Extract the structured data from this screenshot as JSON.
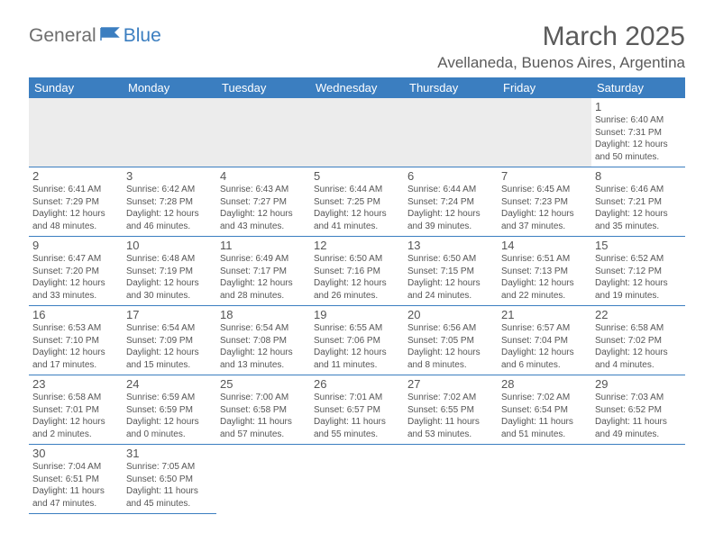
{
  "logo": {
    "part1": "General",
    "part2": "Blue"
  },
  "title": "March 2025",
  "location": "Avellaneda, Buenos Aires, Argentina",
  "colors": {
    "header_bg": "#3b7ec0",
    "header_text": "#ffffff",
    "border": "#3b7ec0",
    "text": "#555555",
    "logo_gray": "#6e6e6e",
    "logo_blue": "#3b7ec0",
    "empty_row_bg": "#ececec"
  },
  "typography": {
    "title_fontsize": 30,
    "location_fontsize": 17,
    "weekday_fontsize": 13,
    "daynum_fontsize": 13,
    "dayinfo_fontsize": 10
  },
  "weekdays": [
    "Sunday",
    "Monday",
    "Tuesday",
    "Wednesday",
    "Thursday",
    "Friday",
    "Saturday"
  ],
  "weeks": [
    [
      null,
      null,
      null,
      null,
      null,
      null,
      {
        "n": "1",
        "sr": "6:40 AM",
        "ss": "7:31 PM",
        "dl": "12 hours and 50 minutes."
      }
    ],
    [
      {
        "n": "2",
        "sr": "6:41 AM",
        "ss": "7:29 PM",
        "dl": "12 hours and 48 minutes."
      },
      {
        "n": "3",
        "sr": "6:42 AM",
        "ss": "7:28 PM",
        "dl": "12 hours and 46 minutes."
      },
      {
        "n": "4",
        "sr": "6:43 AM",
        "ss": "7:27 PM",
        "dl": "12 hours and 43 minutes."
      },
      {
        "n": "5",
        "sr": "6:44 AM",
        "ss": "7:25 PM",
        "dl": "12 hours and 41 minutes."
      },
      {
        "n": "6",
        "sr": "6:44 AM",
        "ss": "7:24 PM",
        "dl": "12 hours and 39 minutes."
      },
      {
        "n": "7",
        "sr": "6:45 AM",
        "ss": "7:23 PM",
        "dl": "12 hours and 37 minutes."
      },
      {
        "n": "8",
        "sr": "6:46 AM",
        "ss": "7:21 PM",
        "dl": "12 hours and 35 minutes."
      }
    ],
    [
      {
        "n": "9",
        "sr": "6:47 AM",
        "ss": "7:20 PM",
        "dl": "12 hours and 33 minutes."
      },
      {
        "n": "10",
        "sr": "6:48 AM",
        "ss": "7:19 PM",
        "dl": "12 hours and 30 minutes."
      },
      {
        "n": "11",
        "sr": "6:49 AM",
        "ss": "7:17 PM",
        "dl": "12 hours and 28 minutes."
      },
      {
        "n": "12",
        "sr": "6:50 AM",
        "ss": "7:16 PM",
        "dl": "12 hours and 26 minutes."
      },
      {
        "n": "13",
        "sr": "6:50 AM",
        "ss": "7:15 PM",
        "dl": "12 hours and 24 minutes."
      },
      {
        "n": "14",
        "sr": "6:51 AM",
        "ss": "7:13 PM",
        "dl": "12 hours and 22 minutes."
      },
      {
        "n": "15",
        "sr": "6:52 AM",
        "ss": "7:12 PM",
        "dl": "12 hours and 19 minutes."
      }
    ],
    [
      {
        "n": "16",
        "sr": "6:53 AM",
        "ss": "7:10 PM",
        "dl": "12 hours and 17 minutes."
      },
      {
        "n": "17",
        "sr": "6:54 AM",
        "ss": "7:09 PM",
        "dl": "12 hours and 15 minutes."
      },
      {
        "n": "18",
        "sr": "6:54 AM",
        "ss": "7:08 PM",
        "dl": "12 hours and 13 minutes."
      },
      {
        "n": "19",
        "sr": "6:55 AM",
        "ss": "7:06 PM",
        "dl": "12 hours and 11 minutes."
      },
      {
        "n": "20",
        "sr": "6:56 AM",
        "ss": "7:05 PM",
        "dl": "12 hours and 8 minutes."
      },
      {
        "n": "21",
        "sr": "6:57 AM",
        "ss": "7:04 PM",
        "dl": "12 hours and 6 minutes."
      },
      {
        "n": "22",
        "sr": "6:58 AM",
        "ss": "7:02 PM",
        "dl": "12 hours and 4 minutes."
      }
    ],
    [
      {
        "n": "23",
        "sr": "6:58 AM",
        "ss": "7:01 PM",
        "dl": "12 hours and 2 minutes."
      },
      {
        "n": "24",
        "sr": "6:59 AM",
        "ss": "6:59 PM",
        "dl": "12 hours and 0 minutes."
      },
      {
        "n": "25",
        "sr": "7:00 AM",
        "ss": "6:58 PM",
        "dl": "11 hours and 57 minutes."
      },
      {
        "n": "26",
        "sr": "7:01 AM",
        "ss": "6:57 PM",
        "dl": "11 hours and 55 minutes."
      },
      {
        "n": "27",
        "sr": "7:02 AM",
        "ss": "6:55 PM",
        "dl": "11 hours and 53 minutes."
      },
      {
        "n": "28",
        "sr": "7:02 AM",
        "ss": "6:54 PM",
        "dl": "11 hours and 51 minutes."
      },
      {
        "n": "29",
        "sr": "7:03 AM",
        "ss": "6:52 PM",
        "dl": "11 hours and 49 minutes."
      }
    ],
    [
      {
        "n": "30",
        "sr": "7:04 AM",
        "ss": "6:51 PM",
        "dl": "11 hours and 47 minutes."
      },
      {
        "n": "31",
        "sr": "7:05 AM",
        "ss": "6:50 PM",
        "dl": "11 hours and 45 minutes."
      },
      null,
      null,
      null,
      null,
      null
    ]
  ],
  "labels": {
    "sunrise": "Sunrise:",
    "sunset": "Sunset:",
    "daylight": "Daylight:"
  }
}
